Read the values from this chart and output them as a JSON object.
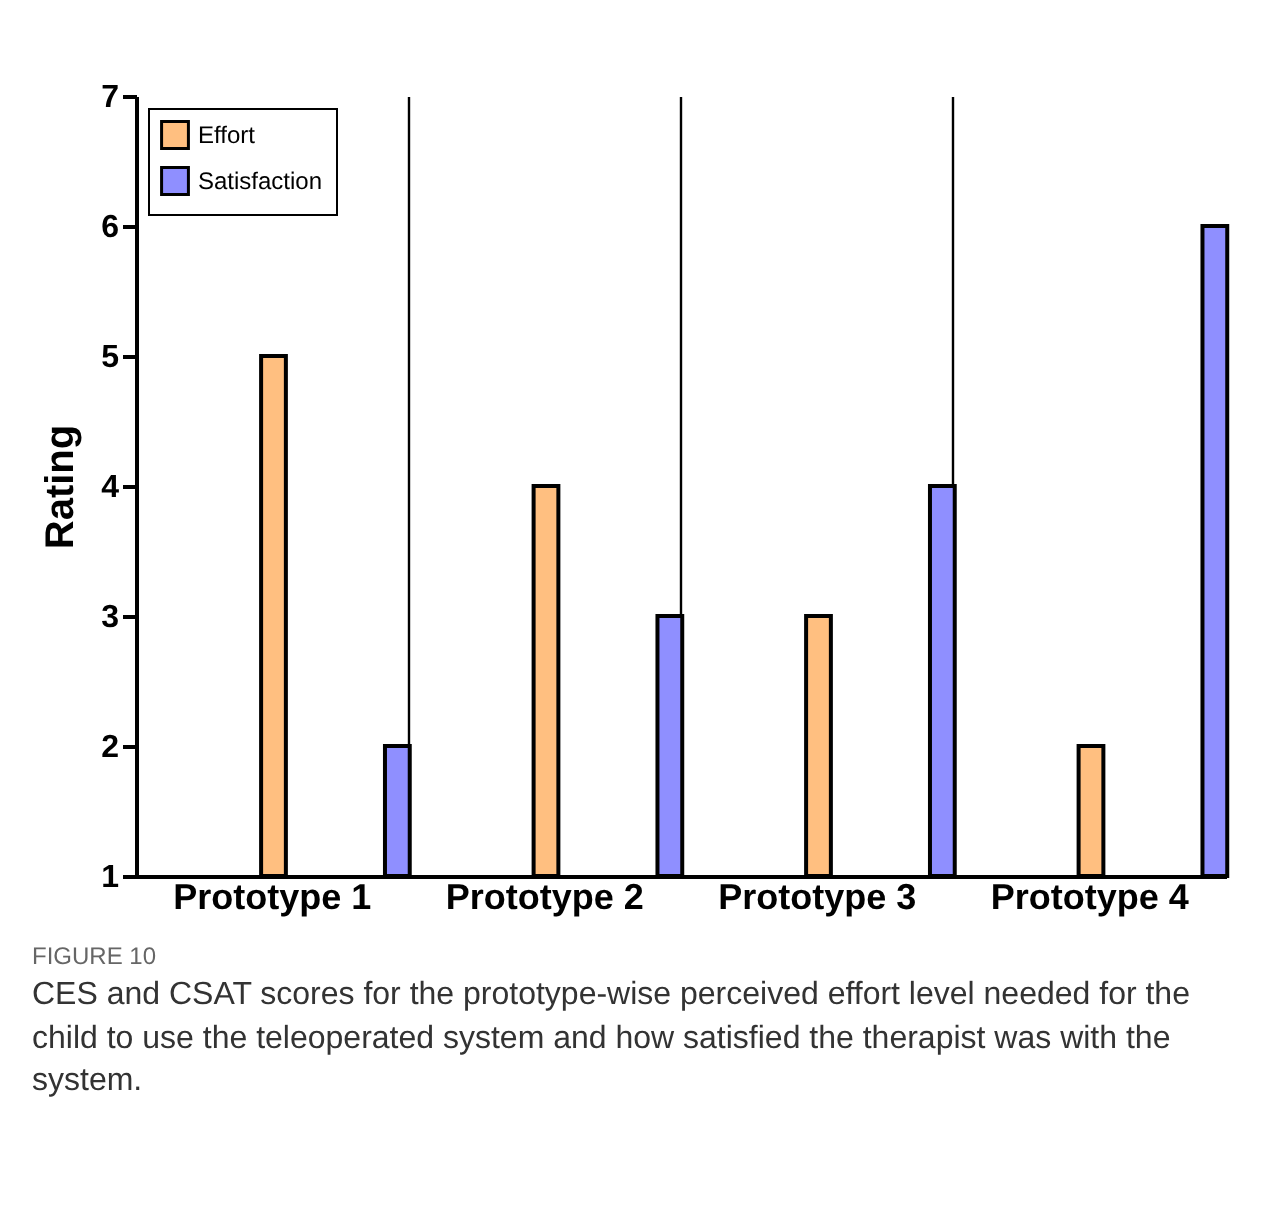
{
  "chart_data": {
    "type": "bar",
    "categories": [
      "Prototype 1",
      "Prototype 2",
      "Prototype 3",
      "Prototype 4"
    ],
    "series": [
      {
        "name": "Effort",
        "color": "#ffbf80",
        "values": [
          5,
          4,
          3,
          2
        ]
      },
      {
        "name": "Satisfaction",
        "color": "#8f8fff",
        "values": [
          2,
          3,
          4,
          6
        ]
      }
    ],
    "ylabel": "Rating",
    "ylim": [
      1,
      7
    ],
    "yticks": [
      1,
      2,
      3,
      4,
      5,
      6,
      7
    ],
    "grid": "x",
    "legend": "top left",
    "annotations": [
      "FIGURE 10",
      "CES and CSAT scores for the prototype-wise perceived effort level needed for the child to use the teleoperated system and how satisfied the therapist was with the system."
    ]
  }
}
